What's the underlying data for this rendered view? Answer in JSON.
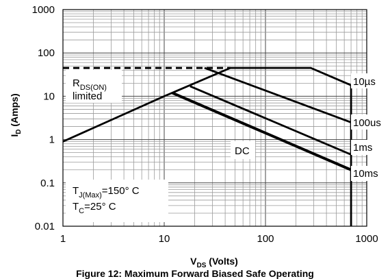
{
  "chart_data": {
    "type": "line",
    "title": "Figure 12: Maximum Forward Biased Safe Operating",
    "xlabel": {
      "main": "V",
      "sub": "DS",
      "rest": " (Volts)"
    },
    "ylabel": {
      "main": "I",
      "sub": "D",
      "rest": " (Amps)"
    },
    "x_scale": "log",
    "y_scale": "log",
    "xlim": [
      1,
      1000
    ],
    "ylim": [
      0.01,
      1000
    ],
    "grid": true,
    "x_ticks": [
      {
        "value": 1,
        "label": "1"
      },
      {
        "value": 10,
        "label": "10"
      },
      {
        "value": 100,
        "label": "100"
      },
      {
        "value": 1000,
        "label": "1000"
      }
    ],
    "y_ticks": [
      {
        "value": 0.01,
        "label": "0.01"
      },
      {
        "value": 0.1,
        "label": "0.1"
      },
      {
        "value": 1,
        "label": "1"
      },
      {
        "value": 10,
        "label": "10"
      },
      {
        "value": 100,
        "label": "100"
      },
      {
        "value": 1000,
        "label": "1000"
      }
    ],
    "series": [
      {
        "name": "10µs",
        "points": [
          [
            1,
            0.9
          ],
          [
            10,
            10
          ],
          [
            45,
            45
          ],
          [
            280,
            45
          ],
          [
            700,
            18
          ],
          [
            700,
            0.01
          ]
        ]
      },
      {
        "name": "100us",
        "points": [
          [
            25,
            45
          ],
          [
            700,
            2.5
          ]
        ]
      },
      {
        "name": "1ms",
        "points": [
          [
            18,
            17
          ],
          [
            700,
            0.45
          ]
        ]
      },
      {
        "name": "DC",
        "points": [
          [
            12,
            12
          ],
          [
            700,
            0.2
          ]
        ]
      }
    ],
    "rds_limit": {
      "points": [
        [
          1,
          45
        ],
        [
          45,
          45
        ]
      ]
    },
    "annotations": {
      "rds_main": "R",
      "rds_sub": "DS(ON)",
      "rds_line2": "limited",
      "tj_main": "T",
      "tj_sub": "J(Max)",
      "tj_rest": "=150° C",
      "tc_main": "T",
      "tc_sub": "C",
      "tc_rest": "=25° C",
      "label_10us": "10µs",
      "label_100us": "100us",
      "label_1ms": "1ms",
      "label_10ms": "10ms",
      "label_dc": "DC"
    }
  }
}
